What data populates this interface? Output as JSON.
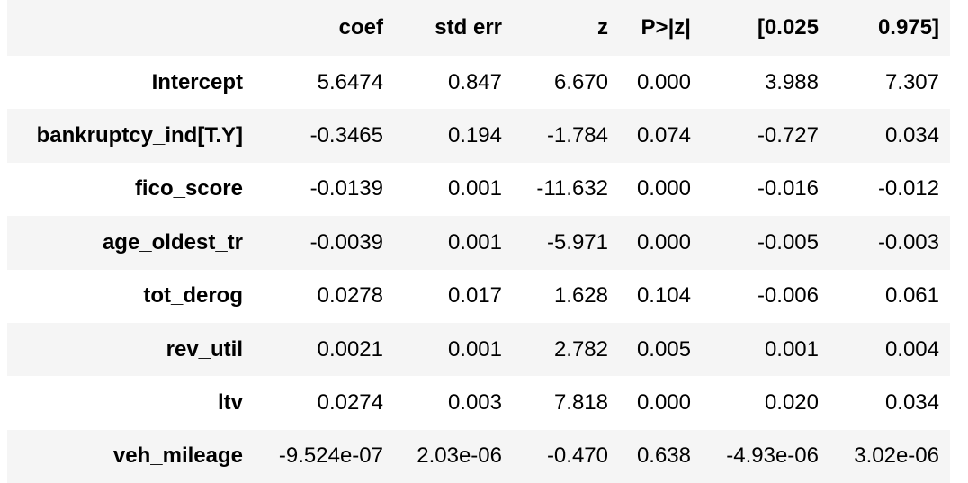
{
  "table": {
    "header": [
      "",
      "coef",
      "std err",
      "z",
      "P>|z|",
      "[0.025",
      "0.975]"
    ],
    "rows": [
      [
        "Intercept",
        "5.6474",
        "0.847",
        "6.670",
        "0.000",
        "3.988",
        "7.307"
      ],
      [
        "bankruptcy_ind[T.Y]",
        "-0.3465",
        "0.194",
        "-1.784",
        "0.074",
        "-0.727",
        "0.034"
      ],
      [
        "fico_score",
        "-0.0139",
        "0.001",
        "-11.632",
        "0.000",
        "-0.016",
        "-0.012"
      ],
      [
        "age_oldest_tr",
        "-0.0039",
        "0.001",
        "-5.971",
        "0.000",
        "-0.005",
        "-0.003"
      ],
      [
        "tot_derog",
        "0.0278",
        "0.017",
        "1.628",
        "0.104",
        "-0.006",
        "0.061"
      ],
      [
        "rev_util",
        "0.0021",
        "0.001",
        "2.782",
        "0.005",
        "0.001",
        "0.004"
      ],
      [
        "ltv",
        "0.0274",
        "0.003",
        "7.818",
        "0.000",
        "0.020",
        "0.034"
      ],
      [
        "veh_mileage",
        "-9.524e-07",
        "2.03e-06",
        "-0.470",
        "0.638",
        "-4.93e-06",
        "3.02e-06"
      ]
    ]
  }
}
